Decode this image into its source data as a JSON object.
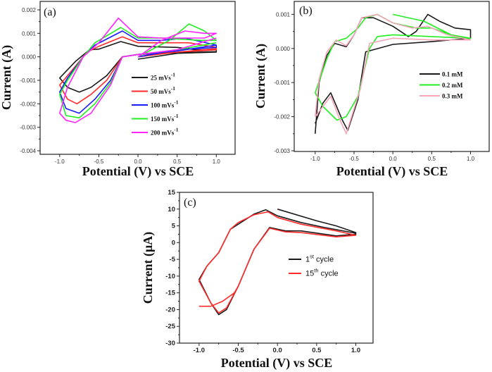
{
  "chart_data": [
    {
      "type": "line",
      "panel_label": "(a)",
      "xlabel": "Potential (V) vs SCE",
      "ylabel": "Current (A)",
      "xlim": [
        -1.25,
        1.24
      ],
      "ylim": [
        -0.00415,
        0.00236
      ],
      "xticks": [
        "-1.0",
        "-0.5",
        "0.0",
        "0.5",
        "1.0"
      ],
      "xtick_values": [
        -1.0,
        -0.5,
        0.0,
        0.5,
        1.0
      ],
      "yticks": [
        "0.002",
        "0.001",
        "0.000",
        "-0.001",
        "-0.002",
        "-0.003",
        "-0.004"
      ],
      "ytick_values": [
        0.002,
        0.001,
        0.0,
        -0.001,
        -0.002,
        -0.003,
        -0.004
      ],
      "legend_position": "center-right",
      "series": [
        {
          "name": "25 mVs",
          "sup": "-1",
          "color": "#1a1a1a",
          "points": [
            [
              0,
              -0.0001
            ],
            [
              0.5,
              0.00015
            ],
            [
              1.0,
              0.0002
            ],
            [
              1.0,
              0.0003
            ],
            [
              0.75,
              0.0003
            ],
            [
              0.5,
              0.0004
            ],
            [
              0,
              0.00045
            ],
            [
              -0.22,
              0.00065
            ],
            [
              -0.5,
              0.00033
            ],
            [
              -0.62,
              0.0003
            ],
            [
              -0.8,
              -0.0002
            ],
            [
              -1.0,
              -0.0009
            ],
            [
              -0.9,
              -0.0013
            ],
            [
              -0.75,
              -0.0015
            ],
            [
              -0.6,
              -0.0013
            ],
            [
              -0.4,
              -0.0008
            ],
            [
              -0.2,
              0.0
            ],
            [
              0,
              0.0001
            ],
            [
              0.5,
              0.00018
            ],
            [
              1.0,
              0.00022
            ]
          ]
        },
        {
          "name": "50 mVs",
          "sup": "-1",
          "color": "#ff2a2a",
          "points": [
            [
              0,
              0.0
            ],
            [
              0.5,
              0.0002
            ],
            [
              1.0,
              0.0003
            ],
            [
              1.0,
              0.0004
            ],
            [
              0.65,
              0.0006
            ],
            [
              0.3,
              0.0006
            ],
            [
              0,
              0.0006
            ],
            [
              -0.2,
              0.00085
            ],
            [
              -0.5,
              0.00045
            ],
            [
              -0.65,
              0.0002
            ],
            [
              -0.85,
              -0.0006
            ],
            [
              -1.0,
              -0.0012
            ],
            [
              -0.9,
              -0.0018
            ],
            [
              -0.78,
              -0.002
            ],
            [
              -0.6,
              -0.0016
            ],
            [
              -0.4,
              -0.001
            ],
            [
              -0.2,
              0.0
            ],
            [
              0,
              0.0001
            ],
            [
              0.5,
              0.0002
            ],
            [
              1.0,
              0.00035
            ]
          ]
        },
        {
          "name": "100 mVs",
          "sup": "-1",
          "color": "#1a1aff",
          "points": [
            [
              0,
              0.0
            ],
            [
              0.5,
              0.0003
            ],
            [
              1.0,
              0.0004
            ],
            [
              1.0,
              0.0005
            ],
            [
              0.6,
              0.0008
            ],
            [
              0.3,
              0.0007
            ],
            [
              0,
              0.0007
            ],
            [
              -0.2,
              0.0011
            ],
            [
              -0.55,
              0.0005
            ],
            [
              -0.7,
              0.0
            ],
            [
              -0.9,
              -0.0009
            ],
            [
              -1.0,
              -0.0015
            ],
            [
              -0.92,
              -0.0022
            ],
            [
              -0.75,
              -0.0024
            ],
            [
              -0.55,
              -0.0018
            ],
            [
              -0.35,
              -0.001
            ],
            [
              -0.2,
              0.0
            ],
            [
              0,
              0.0001
            ],
            [
              0.5,
              0.00025
            ],
            [
              1.0,
              0.0005
            ]
          ]
        },
        {
          "name": "150 mVs",
          "sup": "-1",
          "color": "#22ee22",
          "points": [
            [
              0,
              0.0
            ],
            [
              0.4,
              0.0007
            ],
            [
              0.65,
              0.0014
            ],
            [
              0.85,
              0.0011
            ],
            [
              1.0,
              0.0007
            ],
            [
              0.8,
              0.0007
            ],
            [
              0.3,
              0.0008
            ],
            [
              0,
              0.0008
            ],
            [
              -0.22,
              0.00125
            ],
            [
              -0.55,
              0.0006
            ],
            [
              -0.7,
              0.0
            ],
            [
              -0.9,
              -0.001
            ],
            [
              -1.0,
              -0.0016
            ],
            [
              -0.92,
              -0.0025
            ],
            [
              -0.75,
              -0.0026
            ],
            [
              -0.55,
              -0.002
            ],
            [
              -0.35,
              -0.0011
            ],
            [
              -0.2,
              0.0
            ],
            [
              0,
              0.0001
            ],
            [
              0.5,
              0.0003
            ],
            [
              1.0,
              0.0006
            ]
          ]
        },
        {
          "name": "200 mVs",
          "sup": "-1",
          "color": "#ff22ff",
          "points": [
            [
              0,
              0.0
            ],
            [
              0.3,
              0.0007
            ],
            [
              0.6,
              0.0011
            ],
            [
              0.85,
              0.001
            ],
            [
              1.0,
              0.001
            ],
            [
              0.85,
              0.0008
            ],
            [
              0.3,
              0.0008
            ],
            [
              0,
              0.00085
            ],
            [
              -0.25,
              0.00165
            ],
            [
              -0.5,
              0.0006
            ],
            [
              -0.7,
              0.0
            ],
            [
              -0.9,
              -0.0013
            ],
            [
              -1.0,
              -0.0024
            ],
            [
              -0.92,
              -0.0027
            ],
            [
              -0.8,
              -0.0028
            ],
            [
              -0.6,
              -0.0024
            ],
            [
              -0.35,
              -0.0012
            ],
            [
              -0.2,
              0.0
            ],
            [
              0,
              0.0001
            ],
            [
              0.5,
              0.0003
            ],
            [
              1.0,
              0.0008
            ]
          ]
        }
      ]
    },
    {
      "type": "line",
      "panel_label": "(b)",
      "xlabel": "Potential (V) vs SCE",
      "ylabel": "Current (A)",
      "xlim": [
        -1.27,
        1.24
      ],
      "ylim": [
        -0.00302,
        0.00138
      ],
      "xticks": [
        "-1.0",
        "-0.5",
        "0.0",
        "0.5",
        "1.0"
      ],
      "xtick_values": [
        -1.0,
        -0.5,
        0.0,
        0.5,
        1.0
      ],
      "yticks": [
        "0.001",
        "0.000",
        "-0.001",
        "-0.002",
        "-0.003"
      ],
      "ytick_values": [
        0.001,
        0.0,
        -0.001,
        -0.002,
        -0.003
      ],
      "legend_position": "center-right",
      "series": [
        {
          "name": "0.1 mM",
          "color": "#1a1a1a",
          "points": [
            [
              -1.0,
              -0.0025
            ],
            [
              -0.95,
              -0.001
            ],
            [
              -0.85,
              -0.0002
            ],
            [
              -0.75,
              0.00015
            ],
            [
              -0.6,
              5e-05
            ],
            [
              -0.5,
              0.0004
            ],
            [
              -0.4,
              0.0009
            ],
            [
              -0.25,
              0.0009
            ],
            [
              0,
              0.00065
            ],
            [
              0.2,
              0.00035
            ],
            [
              0.3,
              0.0005
            ],
            [
              0.45,
              0.001
            ],
            [
              0.6,
              0.0008
            ],
            [
              0.8,
              0.0006
            ],
            [
              1.0,
              0.00055
            ],
            [
              1.0,
              0.0003
            ],
            [
              0.5,
              0.0002
            ],
            [
              0,
              0.00012
            ],
            [
              -0.35,
              -0.0001
            ],
            [
              -0.45,
              -0.0015
            ],
            [
              -0.58,
              -0.0024
            ],
            [
              -0.65,
              -0.0021
            ],
            [
              -0.8,
              -0.0013
            ],
            [
              -0.9,
              -0.0016
            ],
            [
              -1.0,
              -0.0022
            ]
          ]
        },
        {
          "name": "0.2 mM",
          "color": "#22ee22",
          "points": [
            [
              0,
              0.001
            ],
            [
              0.4,
              0.0008
            ],
            [
              0.75,
              0.0004
            ],
            [
              1.0,
              0.0003
            ],
            [
              1.0,
              0.0003
            ],
            [
              0.5,
              0.00035
            ],
            [
              0,
              0.0004
            ],
            [
              -0.2,
              0.00035
            ],
            [
              -0.3,
              0.0
            ],
            [
              -0.45,
              -0.0014
            ],
            [
              -0.6,
              -0.002
            ],
            [
              -0.72,
              -0.0021
            ],
            [
              -0.9,
              -0.0017
            ],
            [
              -1.0,
              -0.0013
            ],
            [
              -0.85,
              -0.0003
            ],
            [
              -0.75,
              0.0002
            ],
            [
              -0.6,
              0.0003
            ],
            [
              -0.45,
              0.0006
            ],
            [
              -0.35,
              0.0009
            ],
            [
              -0.2,
              0.001
            ],
            [
              0,
              0.00075
            ],
            [
              0.3,
              0.0006
            ],
            [
              0.5,
              0.0006
            ],
            [
              0.75,
              0.0004
            ],
            [
              1.0,
              0.0003
            ]
          ]
        },
        {
          "name": "0.3 mM",
          "color": "#f4a6b8",
          "points": [
            [
              -1.0,
              -0.002
            ],
            [
              -0.95,
              -0.0009
            ],
            [
              -0.85,
              -0.0001
            ],
            [
              -0.73,
              0.00025
            ],
            [
              -0.6,
              8e-05
            ],
            [
              -0.5,
              0.0004
            ],
            [
              -0.4,
              0.0009
            ],
            [
              -0.2,
              0.001
            ],
            [
              0,
              0.00075
            ],
            [
              0.25,
              0.0006
            ],
            [
              0.45,
              0.00065
            ],
            [
              0.7,
              0.0004
            ],
            [
              1.0,
              0.00025
            ],
            [
              0.5,
              0.00025
            ],
            [
              0,
              0.0003
            ],
            [
              -0.3,
              0.00015
            ],
            [
              -0.42,
              -0.0012
            ],
            [
              -0.6,
              -0.0025
            ],
            [
              -0.68,
              -0.0021
            ],
            [
              -0.8,
              -0.0014
            ],
            [
              -0.9,
              -0.0017
            ],
            [
              -1.0,
              -0.002
            ]
          ]
        }
      ]
    },
    {
      "type": "line",
      "panel_label": "(c)",
      "xlabel": "Potential (V) vs SCE",
      "ylabel": "Current (μA)",
      "xlim": [
        -1.25,
        1.22
      ],
      "ylim": [
        -30,
        15
      ],
      "xticks": [
        "-1.0",
        "-0.5",
        "0.0",
        "0.5",
        "1.0"
      ],
      "xtick_values": [
        -1.0,
        -0.5,
        0.0,
        0.5,
        1.0
      ],
      "yticks": [
        "15",
        "10",
        "5",
        "0",
        "-5",
        "-10",
        "-15",
        "-20",
        "-25",
        "-30"
      ],
      "ytick_values": [
        15,
        10,
        5,
        0,
        -5,
        -10,
        -15,
        -20,
        -25,
        -30
      ],
      "legend_position": "center-right",
      "series": [
        {
          "name": "1",
          "sup": "st",
          "suffix": " cycle",
          "color": "#1a1a1a",
          "points": [
            [
              0,
              10
            ],
            [
              0.5,
              6.5
            ],
            [
              0.75,
              5
            ],
            [
              1.0,
              3
            ],
            [
              1.0,
              2.5
            ],
            [
              0.75,
              2.0
            ],
            [
              0.3,
              3.5
            ],
            [
              0.1,
              3.5
            ],
            [
              -0.1,
              4.5
            ],
            [
              -0.3,
              -2
            ],
            [
              -0.5,
              -13
            ],
            [
              -0.65,
              -20
            ],
            [
              -0.75,
              -21.5
            ],
            [
              -0.85,
              -18
            ],
            [
              -1.0,
              -11
            ],
            [
              -0.9,
              -7
            ],
            [
              -0.75,
              -3
            ],
            [
              -0.6,
              4
            ],
            [
              -0.5,
              5.5
            ],
            [
              -0.3,
              8.5
            ],
            [
              -0.15,
              9.8
            ],
            [
              0,
              8
            ],
            [
              0.3,
              6
            ],
            [
              0.6,
              4.5
            ],
            [
              1.0,
              2.8
            ]
          ]
        },
        {
          "name": "15",
          "sup": "th",
          "suffix": " cycle",
          "color": "#ff2a2a",
          "points": [
            [
              -1.0,
              -19
            ],
            [
              -0.85,
              -19
            ],
            [
              -0.7,
              -17.5
            ],
            [
              -0.55,
              -15
            ],
            [
              -0.5,
              -13
            ],
            [
              -0.3,
              -2
            ],
            [
              -0.1,
              4.3
            ],
            [
              0.1,
              3.2
            ],
            [
              0.3,
              3.0
            ],
            [
              0.75,
              1.7
            ],
            [
              1.0,
              2.2
            ],
            [
              0.75,
              3.5
            ],
            [
              0.3,
              5.5
            ],
            [
              0,
              7.5
            ],
            [
              -0.12,
              9.2
            ],
            [
              -0.3,
              8.3
            ],
            [
              -0.5,
              6
            ],
            [
              -0.6,
              4
            ],
            [
              -0.75,
              -3
            ],
            [
              -0.9,
              -7
            ],
            [
              -1.0,
              -11.5
            ],
            [
              -0.85,
              -18
            ],
            [
              -0.75,
              -21
            ],
            [
              -0.65,
              -19.5
            ],
            [
              -0.5,
              -13
            ]
          ]
        }
      ]
    }
  ]
}
